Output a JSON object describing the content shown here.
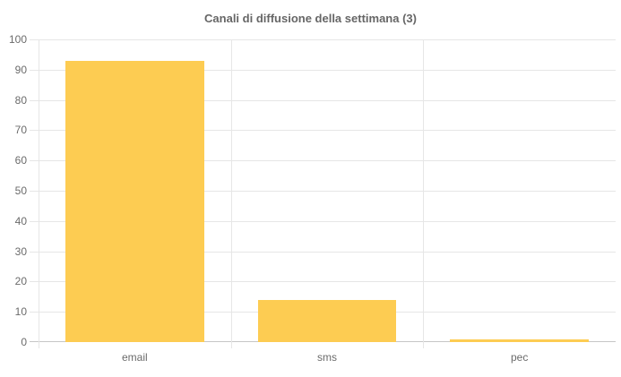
{
  "chart": {
    "title": "Canali di diffusione della settimana (3)"
  },
  "chart_data": {
    "type": "bar",
    "title": "Canali di diffusione della settimana (3)",
    "categories": [
      "email",
      "sms",
      "pec"
    ],
    "values": [
      93,
      14,
      1
    ],
    "xlabel": "",
    "ylabel": "",
    "ylim": [
      0,
      100
    ],
    "ytick_step": 10,
    "yticks": [
      0,
      10,
      20,
      30,
      40,
      50,
      60,
      70,
      80,
      90,
      100
    ],
    "grid": true,
    "legend": "none",
    "bar_ratio": 0.72,
    "colors": {
      "bar": "#FDCC52",
      "grid": "#E6E6E6",
      "zero_line": "#C6C6C6",
      "title_text": "#666666",
      "tick_text": "#6B6B6B"
    }
  }
}
